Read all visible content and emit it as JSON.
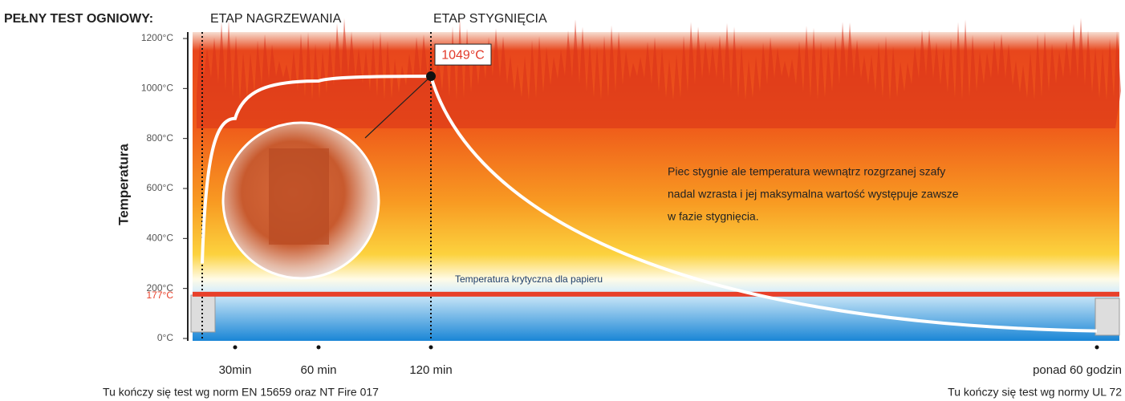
{
  "chart_data": {
    "type": "line",
    "title": "PEŁNY TEST OGNIOWY:",
    "phases": [
      "ETAP NAGRZEWANIA",
      "ETAP STYGNIĘCIA"
    ],
    "y_label": "Temperatura",
    "categories": [
      null,
      "30min",
      "60 min",
      "120 min",
      "ponad 60 godzin"
    ],
    "series": [
      {
        "color": "#ffffff",
        "values": [
          300,
          880,
          1030,
          1049,
          30
        ],
        "value_labels": [
          null,
          null,
          null,
          "1049°C",
          null
        ]
      }
    ],
    "ylim": [
      0,
      1200
    ],
    "yticks": [
      {
        "value": 0,
        "label": "0°C"
      },
      {
        "value": 200,
        "label": "200°C"
      },
      {
        "value": 400,
        "label": "400°C"
      },
      {
        "value": 600,
        "label": "600°C"
      },
      {
        "value": 800,
        "label": "800°C"
      },
      {
        "value": 1000,
        "label": "1000°C"
      },
      {
        "value": 1200,
        "label": "1200°C"
      }
    ],
    "critical": {
      "value": 177,
      "label": "177°C",
      "text": "Temperatura krytyczna dla papieru"
    },
    "annotation": [
      "Piec stygnie ale temperatura wewnątrz rozgrzanej szafy",
      "nadal wzrasta i jej maksymalna wartość występuje zawsze",
      "w fazie stygnięcia."
    ],
    "notes": [
      "Tu kończy się test wg norm EN 15659 oraz NT Fire 017",
      "Tu kończy się test wg normy UL 72"
    ]
  }
}
